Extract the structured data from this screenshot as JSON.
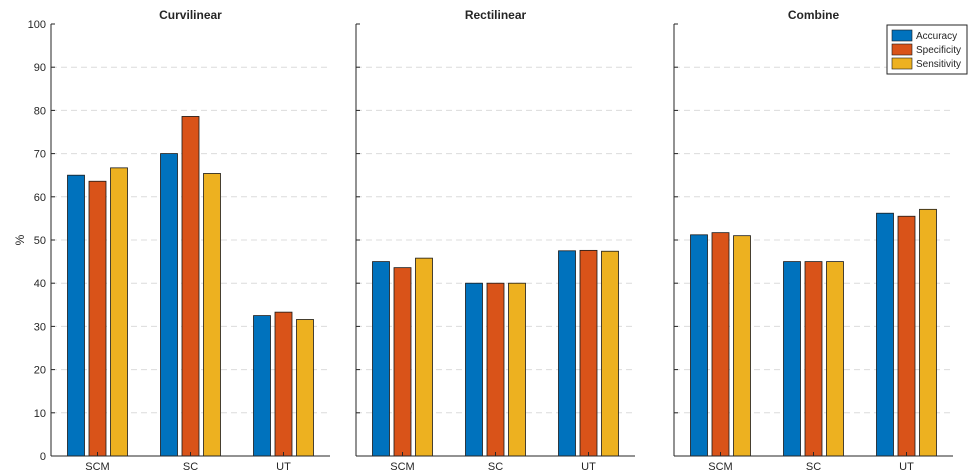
{
  "chart_data": [
    {
      "type": "bar",
      "title": "Curvilinear",
      "ylabel": "%",
      "categories": [
        "SCM",
        "SC",
        "UT"
      ],
      "ylim": [
        0,
        100
      ],
      "yticks": [
        0,
        10,
        20,
        30,
        40,
        50,
        60,
        70,
        80,
        90,
        100
      ],
      "grid": true,
      "series": [
        {
          "name": "Accuracy",
          "color": "#0072BD",
          "values": [
            65,
            70,
            32.5
          ]
        },
        {
          "name": "Specificity",
          "color": "#D95319",
          "values": [
            63.6,
            78.6,
            33.3
          ]
        },
        {
          "name": "Sensitivity",
          "color": "#EDB120",
          "values": [
            66.7,
            65.4,
            31.6
          ]
        }
      ]
    },
    {
      "type": "bar",
      "title": "Rectilinear",
      "categories": [
        "SCM",
        "SC",
        "UT"
      ],
      "ylim": [
        0,
        100
      ],
      "grid": true,
      "series": [
        {
          "name": "Accuracy",
          "color": "#0072BD",
          "values": [
            45,
            40,
            47.5
          ]
        },
        {
          "name": "Specificity",
          "color": "#D95319",
          "values": [
            43.6,
            40,
            47.6
          ]
        },
        {
          "name": "Sensitivity",
          "color": "#EDB120",
          "values": [
            45.8,
            40,
            47.4
          ]
        }
      ]
    },
    {
      "type": "bar",
      "title": "Combine",
      "categories": [
        "SCM",
        "SC",
        "UT"
      ],
      "ylim": [
        0,
        100
      ],
      "grid": true,
      "legend": "top-right",
      "series": [
        {
          "name": "Accuracy",
          "color": "#0072BD",
          "values": [
            51.2,
            45,
            56.2
          ]
        },
        {
          "name": "Specificity",
          "color": "#D95319",
          "values": [
            51.7,
            45,
            55.5
          ]
        },
        {
          "name": "Sensitivity",
          "color": "#EDB120",
          "values": [
            51,
            45,
            57.1
          ]
        }
      ]
    }
  ]
}
